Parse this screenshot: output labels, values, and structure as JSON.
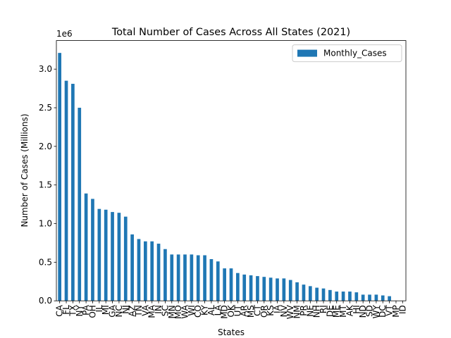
{
  "chart_data": {
    "type": "bar",
    "title": "Total Number of Cases Across All States (2021)",
    "xlabel": "States",
    "ylabel": "Number of Cases (Millions)",
    "y_offset_label": "1e6",
    "categories": [
      "CA",
      "FL",
      "TX",
      "NY",
      "PA",
      "OH",
      "IL",
      "MI",
      "GA",
      "NC",
      "NJ",
      "AZ",
      "TN",
      "VA",
      "MA",
      "IN",
      "SC",
      "MN",
      "MO",
      "WA",
      "WI",
      "CO",
      "KY",
      "AL",
      "LA",
      "MD",
      "OK",
      "UT",
      "AR",
      "MS",
      "CT",
      "OR",
      "KS",
      "IA",
      "NV",
      "WV",
      "NM",
      "PR",
      "NE",
      "NH",
      "RI",
      "DE",
      "ME",
      "MT",
      "AK",
      "HI",
      "ND",
      "SD",
      "WY",
      "DC",
      "VT",
      "MP",
      "ID"
    ],
    "series": [
      {
        "name": "Monthly_Cases",
        "color": "#1f77b4",
        "values": [
          3.21,
          2.85,
          2.81,
          2.5,
          1.39,
          1.32,
          1.19,
          1.18,
          1.15,
          1.14,
          1.09,
          0.86,
          0.8,
          0.77,
          0.77,
          0.74,
          0.67,
          0.6,
          0.6,
          0.6,
          0.6,
          0.59,
          0.59,
          0.54,
          0.51,
          0.42,
          0.42,
          0.36,
          0.34,
          0.33,
          0.32,
          0.31,
          0.3,
          0.29,
          0.29,
          0.27,
          0.24,
          0.21,
          0.19,
          0.17,
          0.16,
          0.14,
          0.12,
          0.12,
          0.12,
          0.11,
          0.08,
          0.08,
          0.08,
          0.07,
          0.06,
          0.002,
          0
        ]
      }
    ],
    "ylim": [
      0,
      3.37
    ],
    "yticks": [
      {
        "value": 0,
        "label": "0.0"
      },
      0.5,
      {
        "value": 1,
        "label": "1.0"
      },
      1.5,
      {
        "value": 2,
        "label": "2.0"
      },
      2.5,
      {
        "value": 3,
        "label": "3.0"
      }
    ],
    "legend": "upper right"
  }
}
